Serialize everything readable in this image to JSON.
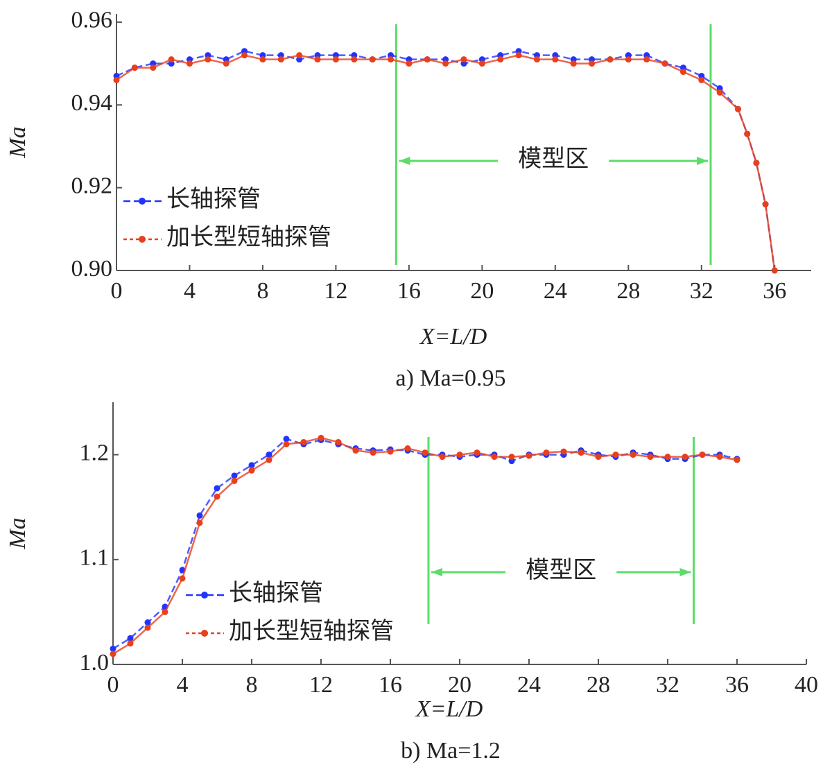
{
  "chart_data": [
    {
      "type": "line",
      "caption": "a)  Ma=0.95",
      "xlabel": "X=L/D",
      "ylabel": "Ma",
      "xlim": [
        0,
        38
      ],
      "xticks": [
        0,
        4,
        8,
        12,
        16,
        20,
        24,
        28,
        32,
        36
      ],
      "ylim": [
        0.9,
        0.962
      ],
      "yticks": [
        {
          "value": 0.9,
          "label": "0.90"
        },
        0.92,
        0.94,
        0.96
      ],
      "legend": "lower left",
      "region": {
        "label": "模型区",
        "x": [
          15.3,
          32.5
        ]
      },
      "x": [
        0,
        1,
        2,
        3,
        4,
        5,
        6,
        7,
        8,
        9,
        10,
        11,
        12,
        13,
        14,
        15,
        16,
        17,
        18,
        19,
        20,
        21,
        22,
        23,
        24,
        25,
        26,
        27,
        28,
        29,
        30,
        31,
        32,
        33,
        34,
        34.5,
        35,
        35.5,
        36
      ],
      "series": [
        {
          "name": "长轴探管",
          "color": "#2233ff",
          "values": [
            0.947,
            0.949,
            0.95,
            0.95,
            0.951,
            0.952,
            0.951,
            0.953,
            0.952,
            0.952,
            0.951,
            0.952,
            0.952,
            0.952,
            0.951,
            0.952,
            0.951,
            0.951,
            0.951,
            0.95,
            0.951,
            0.952,
            0.953,
            0.952,
            0.952,
            0.951,
            0.951,
            0.951,
            0.952,
            0.952,
            0.95,
            0.949,
            0.947,
            0.944,
            0.939,
            0.933,
            0.926,
            0.916,
            0.9
          ]
        },
        {
          "name": "加长型短轴探管",
          "color": "#e8401c",
          "values": [
            0.946,
            0.949,
            0.949,
            0.951,
            0.95,
            0.951,
            0.95,
            0.952,
            0.951,
            0.951,
            0.952,
            0.951,
            0.951,
            0.951,
            0.951,
            0.951,
            0.95,
            0.951,
            0.95,
            0.951,
            0.95,
            0.951,
            0.952,
            0.951,
            0.951,
            0.95,
            0.95,
            0.951,
            0.951,
            0.951,
            0.95,
            0.948,
            0.946,
            0.943,
            0.939,
            0.933,
            0.926,
            0.916,
            0.9
          ]
        }
      ]
    },
    {
      "type": "line",
      "caption": "b)  Ma=1.2",
      "xlabel": "X=L/D",
      "ylabel": "Ma",
      "xlim": [
        0,
        40
      ],
      "xticks": [
        0,
        4,
        8,
        12,
        16,
        20,
        24,
        28,
        32,
        36,
        40
      ],
      "ylim": [
        1.0,
        1.25
      ],
      "yticks": [
        {
          "value": 1,
          "label": "1.0"
        },
        1.1,
        1.2
      ],
      "legend": "lower left",
      "region": {
        "label": "模型区",
        "x": [
          18.2,
          33.5
        ]
      },
      "x": [
        0,
        1,
        2,
        3,
        4,
        5,
        6,
        7,
        8,
        9,
        10,
        11,
        12,
        13,
        14,
        15,
        16,
        17,
        18,
        19,
        20,
        21,
        22,
        23,
        24,
        25,
        26,
        27,
        28,
        29,
        30,
        31,
        32,
        33,
        34,
        35,
        36
      ],
      "series": [
        {
          "name": "长轴探管",
          "color": "#2233ff",
          "values": [
            1.015,
            1.025,
            1.04,
            1.055,
            1.09,
            1.142,
            1.168,
            1.18,
            1.19,
            1.2,
            1.215,
            1.21,
            1.214,
            1.21,
            1.206,
            1.204,
            1.205,
            1.204,
            1.2,
            1.2,
            1.198,
            1.2,
            1.2,
            1.194,
            1.2,
            1.2,
            1.2,
            1.204,
            1.2,
            1.198,
            1.202,
            1.2,
            1.196,
            1.196,
            1.2,
            1.2,
            1.196
          ]
        },
        {
          "name": "加长型短轴探管",
          "color": "#e8401c",
          "values": [
            1.01,
            1.02,
            1.035,
            1.05,
            1.082,
            1.135,
            1.16,
            1.175,
            1.185,
            1.195,
            1.21,
            1.212,
            1.216,
            1.212,
            1.204,
            1.202,
            1.203,
            1.206,
            1.202,
            1.198,
            1.2,
            1.202,
            1.198,
            1.198,
            1.199,
            1.202,
            1.203,
            1.202,
            1.198,
            1.2,
            1.2,
            1.198,
            1.198,
            1.198,
            1.2,
            1.198,
            1.195
          ]
        }
      ]
    }
  ]
}
